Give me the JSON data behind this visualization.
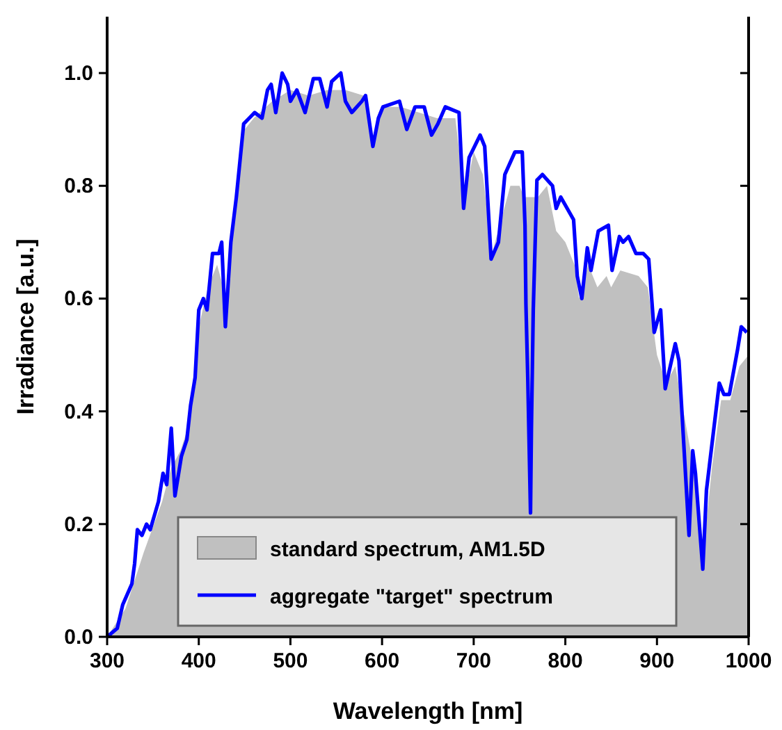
{
  "chart_data": {
    "type": "area",
    "xlabel": "Wavelength [nm]",
    "ylabel": "Irradiance [a.u.]",
    "xlim": [
      300,
      1000
    ],
    "ylim": [
      0,
      1.1
    ],
    "xticks": [
      300,
      400,
      500,
      600,
      700,
      800,
      900,
      1000
    ],
    "yticks": [
      {
        "value": 0,
        "label": "0.0"
      },
      {
        "value": 0.2,
        "label": "0.2"
      },
      {
        "value": 0.4,
        "label": "0.4"
      },
      {
        "value": 0.6,
        "label": "0.6"
      },
      {
        "value": 0.8,
        "label": "0.8"
      },
      {
        "value": 1,
        "label": "1.0"
      }
    ],
    "legend": "bottom",
    "grid": false,
    "series": [
      {
        "name": "standard spectrum, AM1.5D",
        "color": "#c0c0c0",
        "x": [
          300,
          320,
          340,
          360,
          370,
          380,
          390,
          400,
          410,
          420,
          430,
          440,
          450,
          460,
          480,
          500,
          520,
          540,
          560,
          580,
          590,
          600,
          620,
          640,
          660,
          680,
          690,
          700,
          710,
          720,
          730,
          740,
          750,
          755,
          770,
          780,
          790,
          800,
          810,
          815,
          825,
          835,
          845,
          850,
          860,
          880,
          890,
          900,
          910,
          920,
          940,
          950,
          960,
          970,
          980,
          990,
          1000
        ],
        "values": [
          0,
          0.05,
          0.15,
          0.24,
          0.3,
          0.33,
          0.38,
          0.55,
          0.62,
          0.66,
          0.6,
          0.78,
          0.9,
          0.92,
          0.95,
          0.97,
          0.96,
          0.97,
          0.97,
          0.96,
          0.88,
          0.94,
          0.94,
          0.93,
          0.92,
          0.92,
          0.78,
          0.86,
          0.82,
          0.68,
          0.74,
          0.8,
          0.8,
          0.78,
          0.78,
          0.8,
          0.72,
          0.7,
          0.66,
          0.6,
          0.66,
          0.62,
          0.64,
          0.62,
          0.65,
          0.64,
          0.62,
          0.5,
          0.45,
          0.48,
          0.3,
          0.14,
          0.3,
          0.42,
          0.42,
          0.48,
          0.5
        ]
      },
      {
        "name": "aggregate \"target\" spectrum",
        "type": "line",
        "color": "#0000ff",
        "x": [
          300,
          311,
          317,
          327,
          330,
          333,
          338,
          343,
          347,
          356,
          361,
          365,
          370,
          374,
          381,
          387,
          391,
          396,
          400,
          405,
          409,
          415,
          422,
          425,
          429,
          435,
          441,
          449,
          455,
          461,
          469,
          475,
          479,
          484,
          491,
          497,
          500,
          507,
          516,
          525,
          532,
          540,
          545,
          555,
          560,
          567,
          578,
          582,
          590,
          596,
          601,
          619,
          627,
          636,
          646,
          654,
          661,
          669,
          684,
          689,
          695,
          707,
          712,
          719,
          727,
          734,
          745,
          753,
          756,
          757,
          759,
          762,
          763,
          765,
          769,
          775,
          786,
          790,
          795,
          809,
          813,
          818,
          824,
          828,
          836,
          847,
          851,
          859,
          863,
          869,
          877,
          885,
          891,
          897,
          904,
          909,
          920,
          924,
          935,
          939,
          942,
          950,
          954,
          968,
          973,
          979,
          988,
          992,
          998
        ],
        "values": [
          0,
          0.015,
          0.057,
          0.094,
          0.13,
          0.19,
          0.18,
          0.2,
          0.19,
          0.24,
          0.29,
          0.27,
          0.37,
          0.25,
          0.32,
          0.35,
          0.41,
          0.46,
          0.58,
          0.6,
          0.58,
          0.68,
          0.68,
          0.7,
          0.55,
          0.7,
          0.78,
          0.91,
          0.92,
          0.93,
          0.92,
          0.97,
          0.98,
          0.93,
          1,
          0.98,
          0.95,
          0.97,
          0.93,
          0.99,
          0.99,
          0.94,
          0.985,
          1,
          0.95,
          0.93,
          0.95,
          0.96,
          0.87,
          0.92,
          0.94,
          0.95,
          0.9,
          0.94,
          0.94,
          0.89,
          0.91,
          0.94,
          0.93,
          0.76,
          0.85,
          0.89,
          0.87,
          0.67,
          0.7,
          0.82,
          0.86,
          0.86,
          0.73,
          0.59,
          0.46,
          0.22,
          0.37,
          0.58,
          0.81,
          0.82,
          0.8,
          0.76,
          0.78,
          0.74,
          0.64,
          0.6,
          0.69,
          0.65,
          0.72,
          0.73,
          0.65,
          0.71,
          0.7,
          0.71,
          0.68,
          0.68,
          0.67,
          0.54,
          0.58,
          0.44,
          0.52,
          0.49,
          0.18,
          0.33,
          0.29,
          0.12,
          0.26,
          0.45,
          0.43,
          0.43,
          0.51,
          0.55,
          0.54
        ]
      }
    ]
  }
}
